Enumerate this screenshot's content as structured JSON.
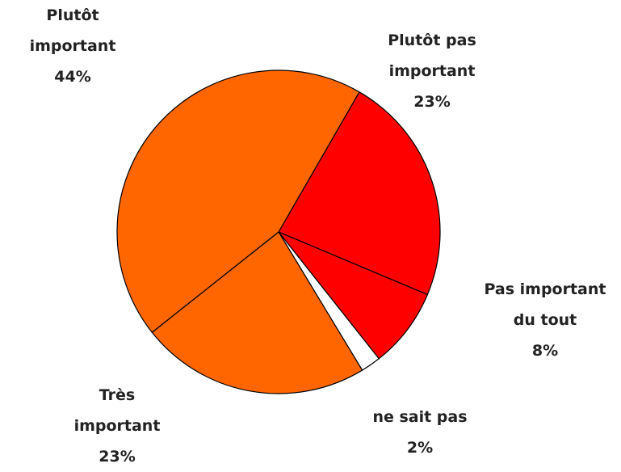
{
  "chart_data": {
    "type": "pie",
    "categories": [
      "Plutôt pas important",
      "Pas important du tout",
      "ne sait pas",
      "Très important",
      "Plutôt important"
    ],
    "values": [
      23,
      8,
      2,
      23,
      44
    ],
    "value_labels": [
      "23%",
      "8%",
      "2%",
      "23%",
      "44%"
    ],
    "colors": [
      "#ff0000",
      "#ff0000",
      "#ffffff",
      "#ff6600",
      "#ff6600"
    ]
  }
}
